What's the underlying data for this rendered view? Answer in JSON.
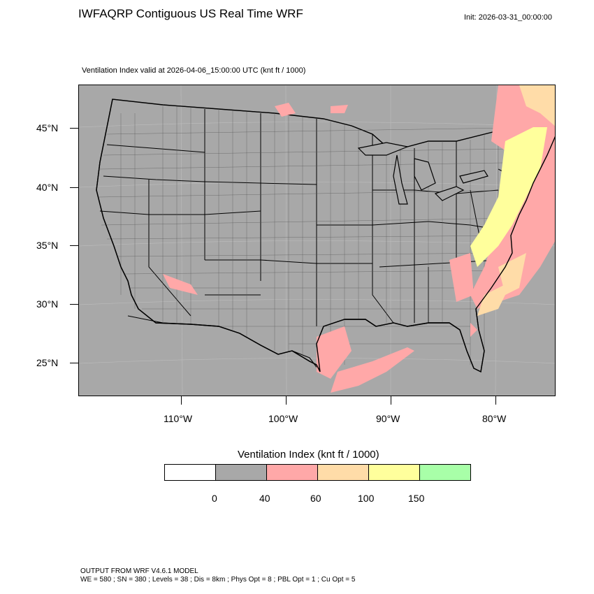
{
  "header": {
    "title": "IWFAQRP Contiguous US Real Time WRF",
    "init": "Init: 2026-03-31_00:00:00",
    "valid": "Ventilation Index valid at 2026-04-06_15:00:00 UTC   (knt ft / 1000)"
  },
  "map": {
    "background_color": "#a8a8a8",
    "lat_labels": [
      "45°N",
      "40°N",
      "35°N",
      "30°N",
      "25°N"
    ],
    "lon_labels": [
      "110°W",
      "100°W",
      "90°W",
      "80°W"
    ]
  },
  "legend": {
    "title": "Ventilation Index  (knt ft / 1000)",
    "colors": [
      "#ffffff",
      "#a8a8a8",
      "#ffa8a8",
      "#ffdca8",
      "#ffff9c",
      "#a8ffa8"
    ],
    "labels": [
      "0",
      "40",
      "60",
      "100",
      "150"
    ]
  },
  "footer": {
    "line1": "OUTPUT FROM WRF V4.6.1 MODEL",
    "line2": "WE = 580 ; SN = 380 ; Levels = 38 ; Dis = 8km ; Phys Opt = 8 ; PBL Opt = 1 ; Cu Opt = 5"
  }
}
